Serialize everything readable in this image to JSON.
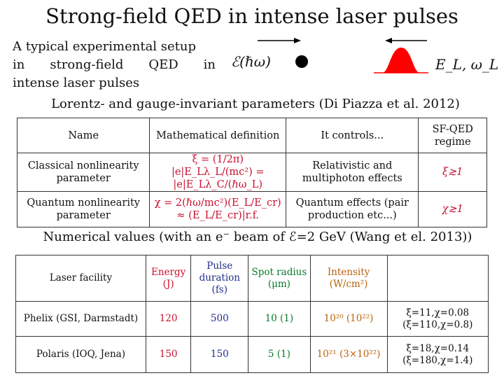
{
  "title": "Strong-field QED in intense laser pulses",
  "setup": {
    "line1": "A typical experimental setup",
    "line2": [
      "in",
      "strong-field",
      "QED",
      "in"
    ],
    "line3": "intense laser pulses"
  },
  "electron_label": "ℰ(ℏω)",
  "laser_label": "E_L, ω_L",
  "laser_color": "#ff0000",
  "lorentz_line": "Lorentz- and gauge-invariant parameters (Di Piazza et al. 2012)",
  "params_table": {
    "headers": [
      "Name",
      "Mathematical definition",
      "It controls...",
      "SF-QED regime"
    ],
    "rows": [
      {
        "name": "Classical nonlinearity parameter",
        "formula": "ξ = (1/2π) |e|E_Lλ_L/(mc²) = |e|E_Lλ_C/(ℏω_L)",
        "controls": "Relativistic and multiphoton effects",
        "regime": "ξ≳1"
      },
      {
        "name": "Quantum nonlinearity parameter",
        "formula": "χ = 2(ℏω/mc²)(E_L/E_cr) ≈ (E_L/E_cr)|r.f.",
        "controls": "Quantum effects (pair production etc...)",
        "regime": "χ≳1"
      }
    ]
  },
  "numerical_line": "Numerical values (with an e⁻ beam of ℰ=2 GeV (Wang et el. 2013))",
  "facility_table": {
    "headers": {
      "facility": "Laser facility",
      "energy": "Energy (J)",
      "duration": "Pulse duration (fs)",
      "radius": "Spot radius (μm)",
      "intensity": "Intensity (W/cm²)"
    },
    "rows": [
      {
        "facility": "Phelix (GSI, Darmstadt)",
        "energy": "120",
        "duration": "500",
        "radius": "10 (1)",
        "intensity": "10²⁰ (10²²)",
        "params1": "ξ=11,χ=0.08",
        "params2": "(ξ=110,χ=0.8)"
      },
      {
        "facility": "Polaris (IOQ, Jena)",
        "energy": "150",
        "duration": "150",
        "radius": "5 (1)",
        "intensity": "10²¹ (3×10²²)",
        "params1": "ξ=18,χ=0.14",
        "params2": "(ξ=180,χ=1.4)"
      }
    ]
  }
}
